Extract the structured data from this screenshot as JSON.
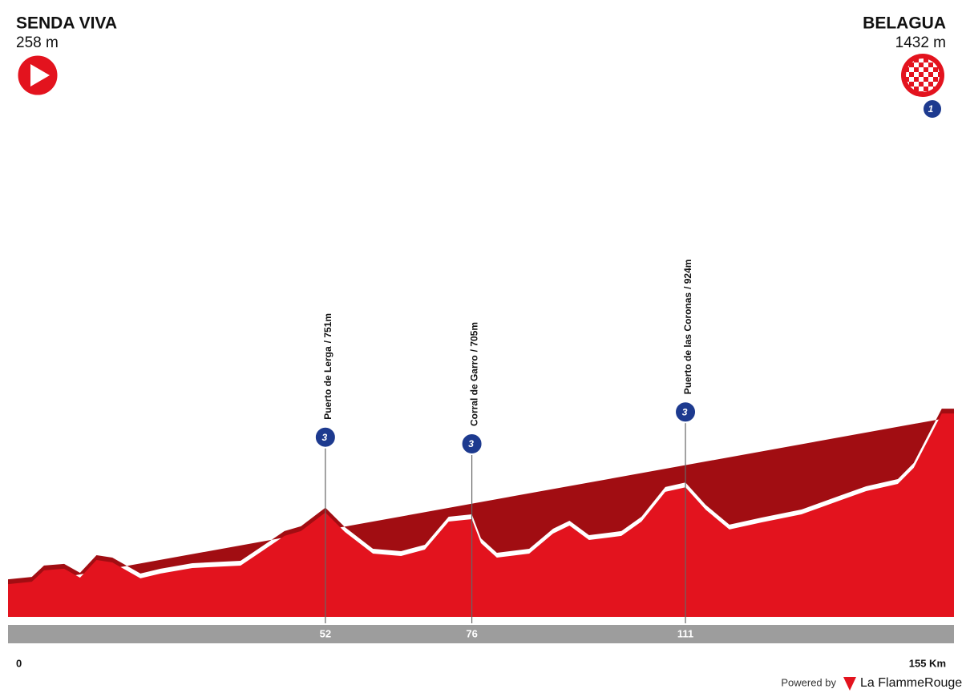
{
  "chart_data": {
    "type": "area",
    "start": {
      "name": "SENDA VIVA",
      "label": "258 m"
    },
    "finish": {
      "name": "BELAGUA",
      "label": "1432 m",
      "category": "1"
    },
    "x": [
      0,
      3.9,
      5.9,
      9.2,
      11.8,
      14.5,
      17.1,
      21.7,
      25,
      30.2,
      38.1,
      42,
      45.3,
      48,
      52,
      55.2,
      59.8,
      64.4,
      68.3,
      72.2,
      76,
      77.5,
      80.1,
      85.4,
      89.3,
      92,
      95.2,
      100.5,
      103.8,
      107.7,
      111,
      114.3,
      118.2,
      123.5,
      130,
      136.6,
      140.6,
      145.8,
      148.4,
      153,
      155
    ],
    "values": [
      258,
      275,
      353,
      364,
      303,
      424,
      408,
      298,
      331,
      369,
      386,
      496,
      590,
      623,
      751,
      617,
      468,
      452,
      496,
      689,
      705,
      540,
      441,
      468,
      606,
      661,
      562,
      590,
      689,
      893,
      924,
      771,
      634,
      683,
      738,
      838,
      898,
      948,
      1058,
      1432,
      1432
    ],
    "color": "#e3131e",
    "xlim": [
      0,
      155
    ],
    "ylim": [
      0,
      4000
    ],
    "xticks": [
      0,
      52,
      76,
      111,
      {
        "value": 155,
        "label": "155 Km"
      }
    ],
    "climbs": [
      {
        "name": "Puerto de Lerga",
        "label": "/ 751m",
        "km": 52,
        "elevation": 751,
        "category": "3"
      },
      {
        "name": "Corral de Garro",
        "label": "/ 705m",
        "km": 76,
        "elevation": 705,
        "category": "3"
      },
      {
        "name": "Puerto de las Coronas",
        "label": "/ 924m",
        "km": 111,
        "elevation": 924,
        "category": "3"
      }
    ],
    "credit": {
      "prefix": "Powered by",
      "brand": "La FlammeRouge"
    }
  }
}
